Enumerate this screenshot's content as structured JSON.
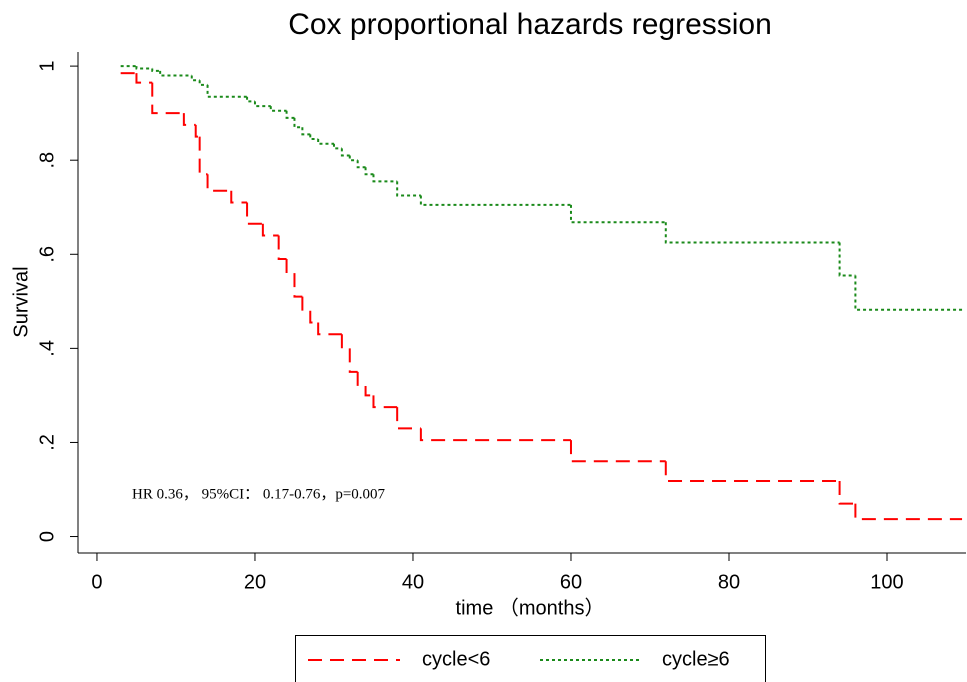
{
  "chart_data": {
    "type": "step",
    "title": "Cox proportional hazards regression",
    "x_label": "time （months）",
    "y_label": "Survival",
    "annotation": "HR 0.36， 95%CI： 0.17-0.76，p=0.007",
    "xlim": [
      -2.4,
      110
    ],
    "ylim": [
      -0.035,
      1.03
    ],
    "xticks": [
      0,
      20,
      40,
      60,
      80,
      100
    ],
    "yticks": [
      0,
      {
        "value": 0.2,
        "label": ".2"
      },
      {
        "value": 0.4,
        "label": ".4"
      },
      {
        "value": 0.6,
        "label": ".6"
      },
      {
        "value": 0.8,
        "label": ".8"
      },
      1
    ],
    "series": [
      {
        "name": "cycle<6",
        "color": "#ff0000",
        "dash": "14 8",
        "x": [
          3,
          5,
          7,
          11,
          12.5,
          13,
          14,
          17,
          19,
          21,
          23,
          24,
          25,
          26,
          27,
          28,
          31,
          32,
          33,
          34,
          35,
          38,
          41,
          60,
          72,
          94,
          96,
          109.5
        ],
        "values": [
          0.985,
          0.965,
          0.9,
          0.875,
          0.85,
          0.77,
          0.735,
          0.71,
          0.665,
          0.64,
          0.59,
          0.56,
          0.51,
          0.48,
          0.455,
          0.43,
          0.4,
          0.35,
          0.32,
          0.3,
          0.275,
          0.23,
          0.205,
          0.16,
          0.118,
          0.07,
          0.037,
          0.037
        ]
      },
      {
        "name": "cycle≥6",
        "color": "#1a8a1a",
        "dash": "3 3",
        "x": [
          3,
          5,
          7,
          8,
          12,
          13,
          14,
          19,
          20,
          22,
          24,
          25,
          26,
          27,
          28,
          30,
          31,
          32,
          33,
          34,
          35,
          38,
          41,
          60,
          72,
          94,
          96,
          109.5
        ],
        "values": [
          1,
          0.995,
          0.99,
          0.98,
          0.97,
          0.96,
          0.935,
          0.925,
          0.915,
          0.905,
          0.89,
          0.87,
          0.855,
          0.845,
          0.835,
          0.825,
          0.81,
          0.8,
          0.785,
          0.77,
          0.755,
          0.725,
          0.705,
          0.668,
          0.625,
          0.555,
          0.482,
          0.482
        ]
      }
    ]
  }
}
